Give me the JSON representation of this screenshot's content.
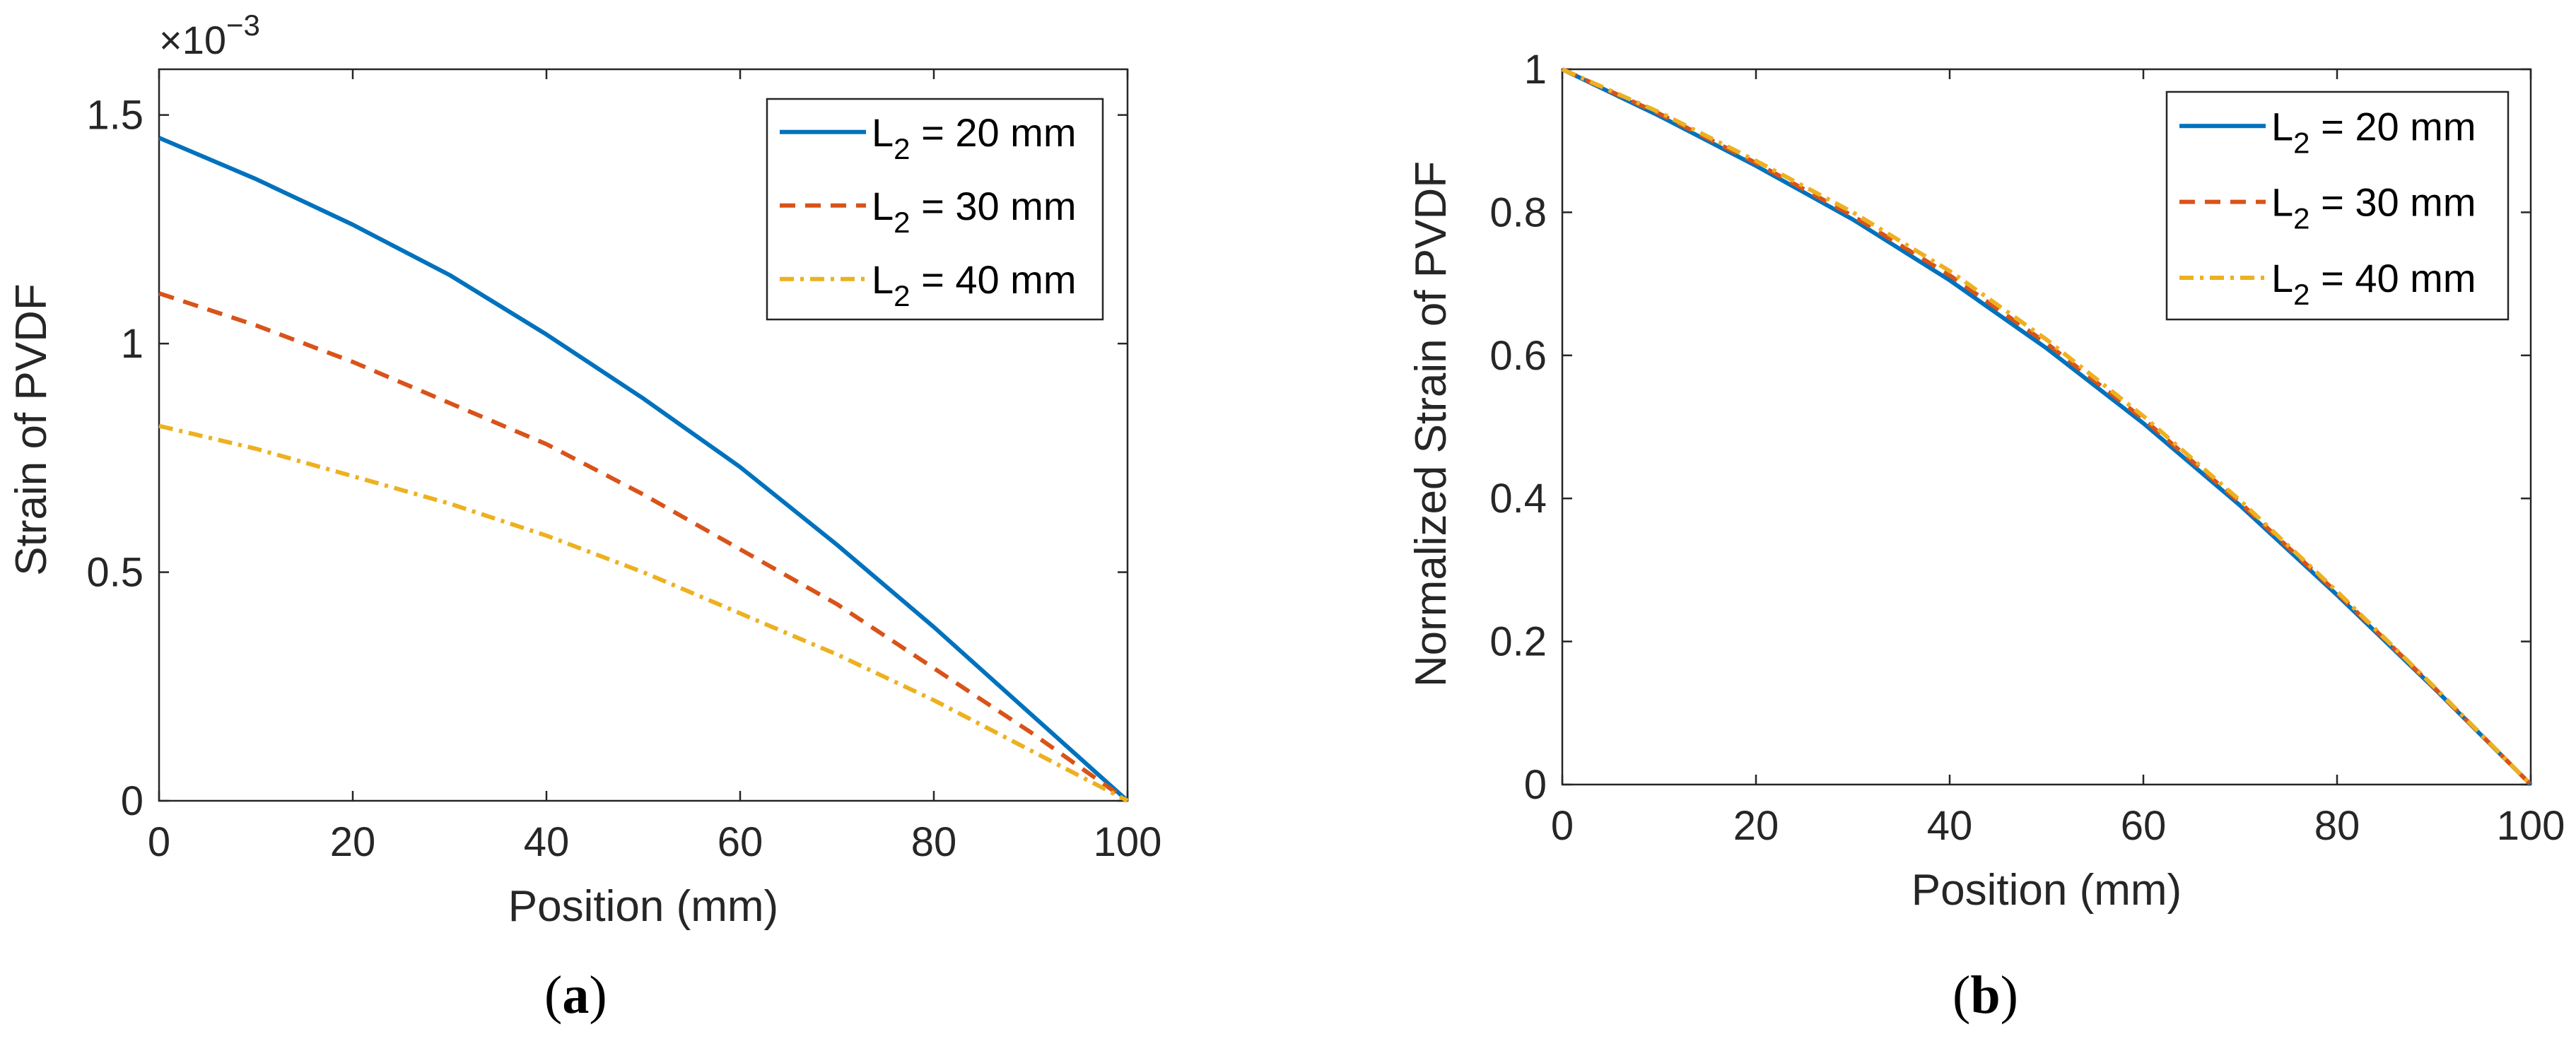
{
  "figure": {
    "panel_a_label_open": "(",
    "panel_a_label_letter": "a",
    "panel_a_label_close": ")",
    "panel_b_label_open": "(",
    "panel_b_label_letter": "b",
    "panel_b_label_close": ")"
  },
  "chart_data": [
    {
      "type": "line",
      "panel": "a",
      "xlabel": "Position (mm)",
      "ylabel": "Strain of PVDF",
      "xlim": [
        0,
        100
      ],
      "ylim": [
        0,
        1.6
      ],
      "y_exponent": "×10⁻³",
      "y_exponent_base": "×10",
      "y_exponent_power": "−3",
      "xticks": [
        "0",
        "20",
        "40",
        "60",
        "80",
        "100"
      ],
      "yticks": [
        "0",
        "0.5",
        "1",
        "1.5"
      ],
      "ytick_values": [
        0,
        0.5,
        1,
        1.5
      ],
      "legend_position": "top-right",
      "series": [
        {
          "name": "L2 = 20 mm",
          "label_main": "L",
          "label_sub": "2",
          "label_rest": " = 20 mm",
          "color": "#0072BD",
          "dash": "solid",
          "x": [
            0,
            10,
            20,
            30,
            40,
            50,
            60,
            70,
            80,
            90,
            100
          ],
          "values": [
            1.45,
            1.36,
            1.26,
            1.15,
            1.02,
            0.88,
            0.73,
            0.56,
            0.38,
            0.19,
            0.0
          ]
        },
        {
          "name": "L2 = 30 mm",
          "label_main": "L",
          "label_sub": "2",
          "label_rest": " = 30 mm",
          "color": "#D95319",
          "dash": "dashed",
          "x": [
            0,
            10,
            20,
            30,
            40,
            50,
            60,
            70,
            80,
            90,
            100
          ],
          "values": [
            1.11,
            1.04,
            0.96,
            0.87,
            0.78,
            0.67,
            0.55,
            0.43,
            0.29,
            0.15,
            0.0
          ]
        },
        {
          "name": "L2 = 40 mm",
          "label_main": "L",
          "label_sub": "2",
          "label_rest": " = 40 mm",
          "color": "#EDB120",
          "dash": "dashdot",
          "x": [
            0,
            10,
            20,
            30,
            40,
            50,
            60,
            70,
            80,
            90,
            100
          ],
          "values": [
            0.82,
            0.77,
            0.71,
            0.65,
            0.58,
            0.5,
            0.41,
            0.32,
            0.22,
            0.11,
            0.0
          ]
        }
      ]
    },
    {
      "type": "line",
      "panel": "b",
      "xlabel": "Position (mm)",
      "ylabel": "Normalized Strain of PVDF",
      "xlim": [
        0,
        100
      ],
      "ylim": [
        0,
        1
      ],
      "xticks": [
        "0",
        "20",
        "40",
        "60",
        "80",
        "100"
      ],
      "yticks": [
        "0",
        "0.2",
        "0.4",
        "0.6",
        "0.8",
        "1"
      ],
      "ytick_values": [
        0,
        0.2,
        0.4,
        0.6,
        0.8,
        1
      ],
      "legend_position": "top-right",
      "series": [
        {
          "name": "L2 = 20 mm",
          "label_main": "L",
          "label_sub": "2",
          "label_rest": " = 20 mm",
          "color": "#0072BD",
          "dash": "solid",
          "x": [
            0,
            10,
            20,
            30,
            40,
            50,
            60,
            70,
            80,
            90,
            100
          ],
          "values": [
            1.0,
            0.935,
            0.865,
            0.79,
            0.705,
            0.61,
            0.505,
            0.39,
            0.265,
            0.135,
            0.0
          ]
        },
        {
          "name": "L2 = 30 mm",
          "label_main": "L",
          "label_sub": "2",
          "label_rest": " = 30 mm",
          "color": "#D95319",
          "dash": "dashed",
          "x": [
            0,
            10,
            20,
            30,
            40,
            50,
            60,
            70,
            80,
            90,
            100
          ],
          "values": [
            1.0,
            0.938,
            0.869,
            0.795,
            0.712,
            0.617,
            0.511,
            0.394,
            0.268,
            0.136,
            0.0
          ]
        },
        {
          "name": "L2 = 40 mm",
          "label_main": "L",
          "label_sub": "2",
          "label_rest": " = 40 mm",
          "color": "#EDB120",
          "dash": "dashdot",
          "x": [
            0,
            10,
            20,
            30,
            40,
            50,
            60,
            70,
            80,
            90,
            100
          ],
          "values": [
            1.0,
            0.94,
            0.872,
            0.8,
            0.718,
            0.622,
            0.515,
            0.397,
            0.27,
            0.137,
            0.0
          ]
        }
      ]
    }
  ]
}
